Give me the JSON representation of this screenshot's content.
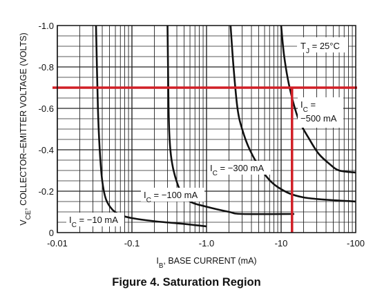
{
  "caption": "Figure 4. Saturation Region",
  "chart_data": {
    "type": "line",
    "xscale": "log",
    "xlim": [
      -0.01,
      -100
    ],
    "ylim": [
      0,
      -1.0
    ],
    "xticks": [
      "-0.01",
      "-0.1",
      "-1.0",
      "-10",
      "-100"
    ],
    "yticks": [
      "0",
      "-0.2",
      "-0.4",
      "-0.6",
      "-0.8",
      "-1.0"
    ],
    "xlabel": {
      "main": "I",
      "sub": "B",
      "rest": ", BASE CURRENT (mA)"
    },
    "ylabel": {
      "main": "V",
      "sub": "CE",
      "rest": ", COLLECTOR–EMITTER VOLTAGE (VOLTS)"
    },
    "grid": true,
    "annotation_temp": {
      "main": "T",
      "sub": "J",
      "rest": " = 25°C"
    },
    "series": [
      {
        "label_main": "I",
        "label_sub": "C",
        "label_rest": " = −10 mA",
        "points": [
          [
            -0.033,
            -1.0
          ],
          [
            -0.035,
            -0.6
          ],
          [
            -0.037,
            -0.4
          ],
          [
            -0.04,
            -0.25
          ],
          [
            -0.045,
            -0.16
          ],
          [
            -0.055,
            -0.11
          ],
          [
            -0.07,
            -0.085
          ],
          [
            -0.1,
            -0.07
          ],
          [
            -0.2,
            -0.055
          ],
          [
            -0.5,
            -0.042
          ],
          [
            -1.0,
            -0.03
          ]
        ]
      },
      {
        "label_main": "I",
        "label_sub": "C",
        "label_rest": " = −100 mA",
        "points": [
          [
            -0.3,
            -1.0
          ],
          [
            -0.31,
            -0.6
          ],
          [
            -0.32,
            -0.45
          ],
          [
            -0.34,
            -0.35
          ],
          [
            -0.38,
            -0.27
          ],
          [
            -0.45,
            -0.2
          ],
          [
            -0.6,
            -0.15
          ],
          [
            -1.0,
            -0.125
          ],
          [
            -2.0,
            -0.1
          ],
          [
            -3.0,
            -0.09
          ],
          [
            -15,
            -0.09
          ]
        ]
      },
      {
        "label_main": "I",
        "label_sub": "C",
        "label_rest": " = −300 mA",
        "points": [
          [
            -2.1,
            -1.0
          ],
          [
            -2.3,
            -0.8
          ],
          [
            -2.6,
            -0.6
          ],
          [
            -3.0,
            -0.5
          ],
          [
            -3.8,
            -0.4
          ],
          [
            -5.5,
            -0.3
          ],
          [
            -9.0,
            -0.22
          ],
          [
            -20,
            -0.17
          ],
          [
            -100,
            -0.15
          ]
        ]
      },
      {
        "label_main": "I",
        "label_sub": "C",
        "label_rest": " = −500 mA",
        "label_rest2": "−500 mA",
        "points": [
          [
            -10,
            -1.0
          ],
          [
            -11,
            -0.85
          ],
          [
            -13,
            -0.7
          ],
          [
            -17,
            -0.55
          ],
          [
            -24,
            -0.45
          ],
          [
            -32,
            -0.38
          ],
          [
            -45,
            -0.33
          ],
          [
            -60,
            -0.3
          ],
          [
            -100,
            -0.29
          ]
        ]
      }
    ],
    "markers": {
      "horizontal_y": -0.7,
      "vertical_x": -14,
      "color": "#d11f26"
    }
  }
}
